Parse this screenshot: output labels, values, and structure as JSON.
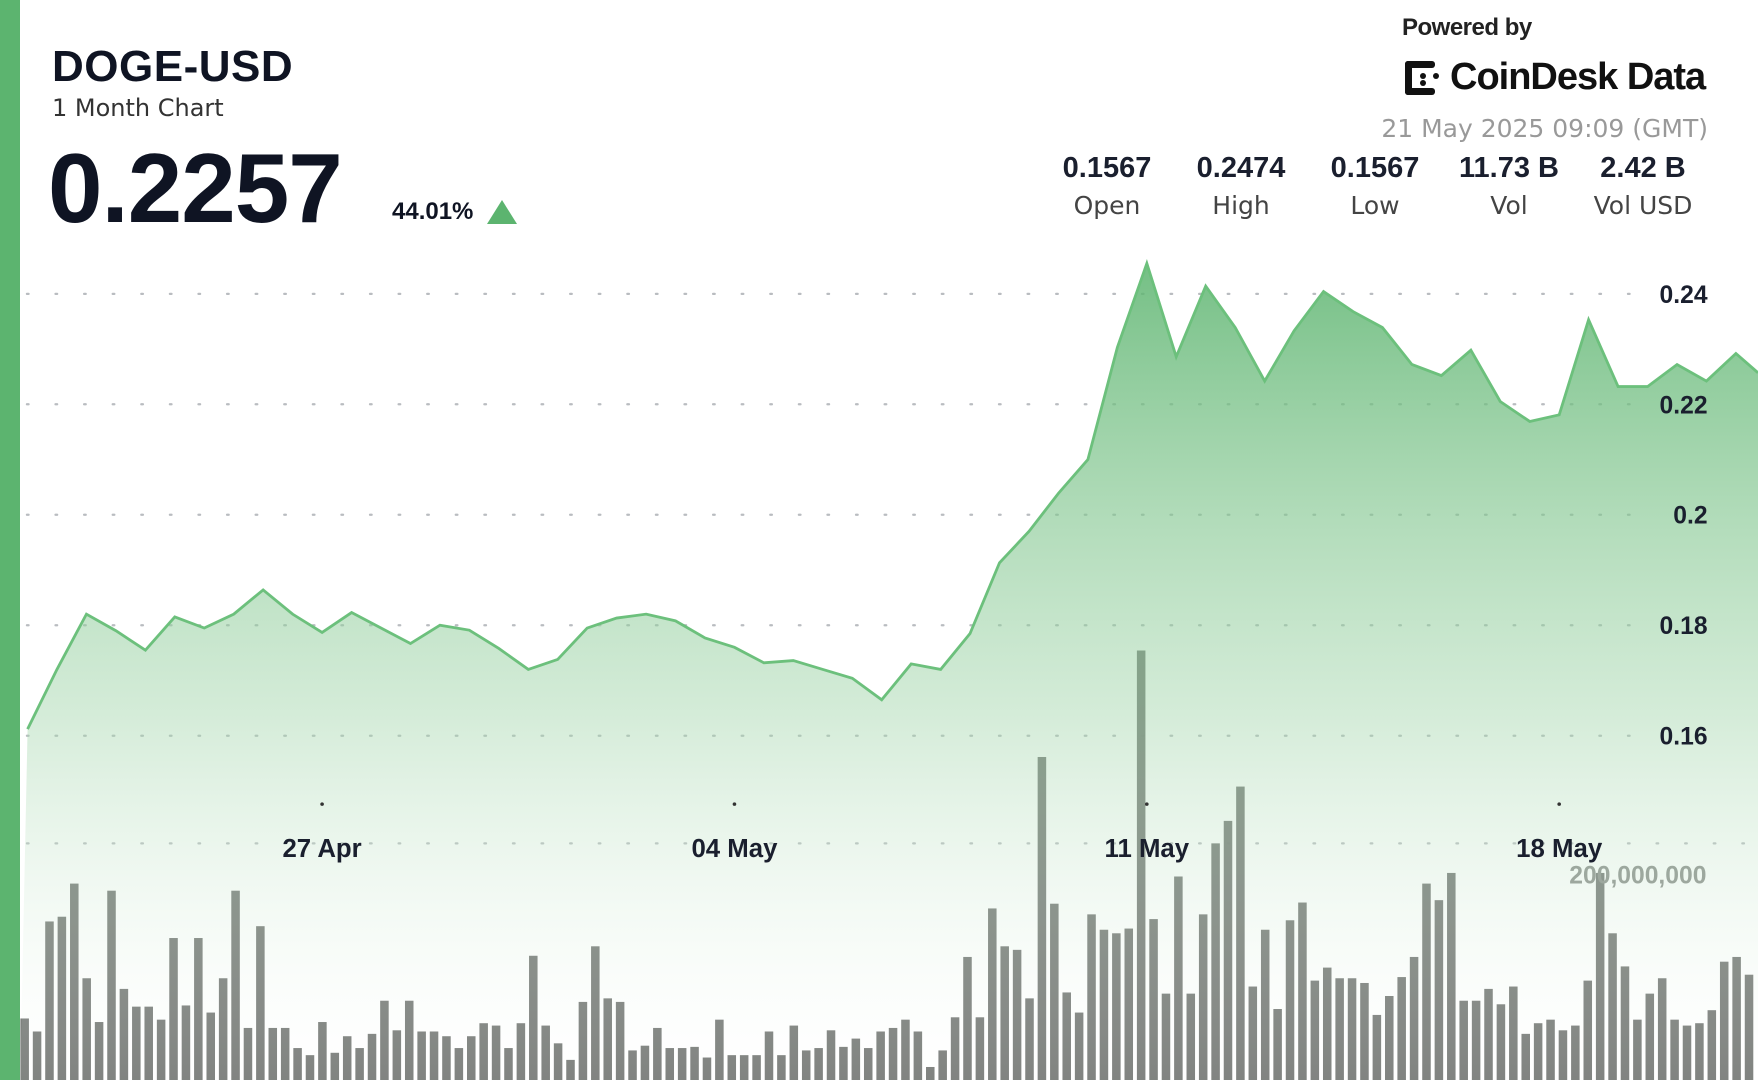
{
  "header": {
    "symbol": "DOGE-USD",
    "subtitle": "1 Month Chart",
    "price": "0.2257",
    "change": "44.01%",
    "change_direction": "up",
    "powered_by": "Powered by",
    "brand": "CoinDesk Data",
    "timestamp": "21 May 2025 09:09 (GMT)"
  },
  "stats": [
    {
      "value": "0.1567",
      "label": "Open"
    },
    {
      "value": "0.2474",
      "label": "High"
    },
    {
      "value": "0.1567",
      "label": "Low"
    },
    {
      "value": "11.73 B",
      "label": "Vol"
    },
    {
      "value": "2.42 B",
      "label": "Vol USD"
    }
  ],
  "colors": {
    "accent": "#5cb46f",
    "line": "#6cc07c",
    "volume": "#6b6f6b",
    "text": "#0f1423"
  },
  "chart_data": {
    "type": "area",
    "title": "DOGE-USD",
    "x_tick_labels": [
      "27 Apr",
      "04 May",
      "11 May",
      "18 May"
    ],
    "x_ticks": [
      "2025-04-27",
      "2025-05-04",
      "2025-05-11",
      "2025-05-18"
    ],
    "xlim": [
      "2025-04-21T21:00",
      "2025-05-21T09:00"
    ],
    "y_ticks": [
      0.16,
      0.18,
      0.2,
      0.22,
      0.24
    ],
    "y_tick_labels": [
      "0.16",
      "0.18",
      "0.2",
      "0.22",
      "0.24"
    ],
    "ylim": [
      0.14,
      0.255
    ],
    "grid": true,
    "price_series": {
      "x": [
        "2025-04-22T00:00",
        "2025-04-22T12:00",
        "2025-04-23T00:00",
        "2025-04-23T12:00",
        "2025-04-24T00:00",
        "2025-04-24T12:00",
        "2025-04-25T00:00",
        "2025-04-25T12:00",
        "2025-04-26T00:00",
        "2025-04-26T12:00",
        "2025-04-27T00:00",
        "2025-04-27T12:00",
        "2025-04-28T00:00",
        "2025-04-28T12:00",
        "2025-04-29T00:00",
        "2025-04-29T12:00",
        "2025-04-30T00:00",
        "2025-04-30T12:00",
        "2025-05-01T00:00",
        "2025-05-01T12:00",
        "2025-05-02T00:00",
        "2025-05-02T12:00",
        "2025-05-03T00:00",
        "2025-05-03T12:00",
        "2025-05-04T00:00",
        "2025-05-04T12:00",
        "2025-05-05T00:00",
        "2025-05-05T12:00",
        "2025-05-06T00:00",
        "2025-05-06T12:00",
        "2025-05-07T00:00",
        "2025-05-07T12:00",
        "2025-05-08T00:00",
        "2025-05-08T12:00",
        "2025-05-09T00:00",
        "2025-05-09T12:00",
        "2025-05-10T00:00",
        "2025-05-10T12:00",
        "2025-05-11T00:00",
        "2025-05-11T12:00",
        "2025-05-12T00:00",
        "2025-05-12T12:00",
        "2025-05-13T00:00",
        "2025-05-13T12:00",
        "2025-05-14T00:00",
        "2025-05-14T12:00",
        "2025-05-15T00:00",
        "2025-05-15T12:00",
        "2025-05-16T00:00",
        "2025-05-16T12:00",
        "2025-05-17T00:00",
        "2025-05-17T12:00",
        "2025-05-18T00:00",
        "2025-05-18T12:00",
        "2025-05-19T00:00",
        "2025-05-19T12:00",
        "2025-05-20T00:00",
        "2025-05-20T12:00",
        "2025-05-21T00:00",
        "2025-05-21T09:00"
      ],
      "y": [
        0.1612,
        0.172,
        0.182,
        0.179,
        0.1755,
        0.1815,
        0.1795,
        0.182,
        0.1864,
        0.182,
        0.1787,
        0.1823,
        0.1795,
        0.1767,
        0.18,
        0.1791,
        0.1758,
        0.172,
        0.1738,
        0.1795,
        0.1813,
        0.182,
        0.1808,
        0.1777,
        0.176,
        0.1732,
        0.1736,
        0.172,
        0.1704,
        0.1665,
        0.173,
        0.172,
        0.1785,
        0.1913,
        0.197,
        0.2039,
        0.21,
        0.2303,
        0.2455,
        0.2286,
        0.2414,
        0.2339,
        0.2242,
        0.2333,
        0.2404,
        0.2368,
        0.2339,
        0.2272,
        0.2252,
        0.2298,
        0.2205,
        0.2169,
        0.2181,
        0.2353,
        0.2232,
        0.2232,
        0.2272,
        0.2242,
        0.2292,
        0.2257
      ]
    },
    "volume_series": {
      "unit": "millions",
      "gridline_label": "200,000,000",
      "gridline_value": 200,
      "values": [
        52,
        41,
        134,
        138,
        166,
        86,
        49,
        160,
        77,
        62,
        62,
        51,
        120,
        63,
        120,
        57,
        86,
        160,
        44,
        130,
        44,
        44,
        27,
        21,
        49,
        23,
        37,
        27,
        39,
        67,
        42,
        67,
        41,
        41,
        37,
        27,
        37,
        48,
        46,
        27,
        48,
        105,
        46,
        31,
        17,
        66,
        113,
        69,
        66,
        25,
        29,
        44,
        27,
        27,
        28,
        19,
        51,
        21,
        21,
        21,
        41,
        21,
        46,
        25,
        27,
        42,
        28,
        35,
        27,
        41,
        44,
        51,
        41,
        11,
        25,
        53,
        104,
        53,
        145,
        113,
        110,
        69,
        273,
        149,
        74,
        57,
        140,
        127,
        124,
        128,
        363,
        136,
        73,
        172,
        73,
        140,
        200,
        219,
        248,
        79,
        127,
        60,
        135,
        150,
        84,
        95,
        86,
        86,
        82,
        55,
        71,
        87,
        104,
        166,
        152,
        175,
        67,
        67,
        77,
        64,
        79,
        39,
        48,
        51,
        42,
        46,
        84,
        175,
        124,
        96,
        51,
        73,
        86,
        51,
        46,
        48,
        59,
        100,
        104,
        89
      ]
    }
  }
}
